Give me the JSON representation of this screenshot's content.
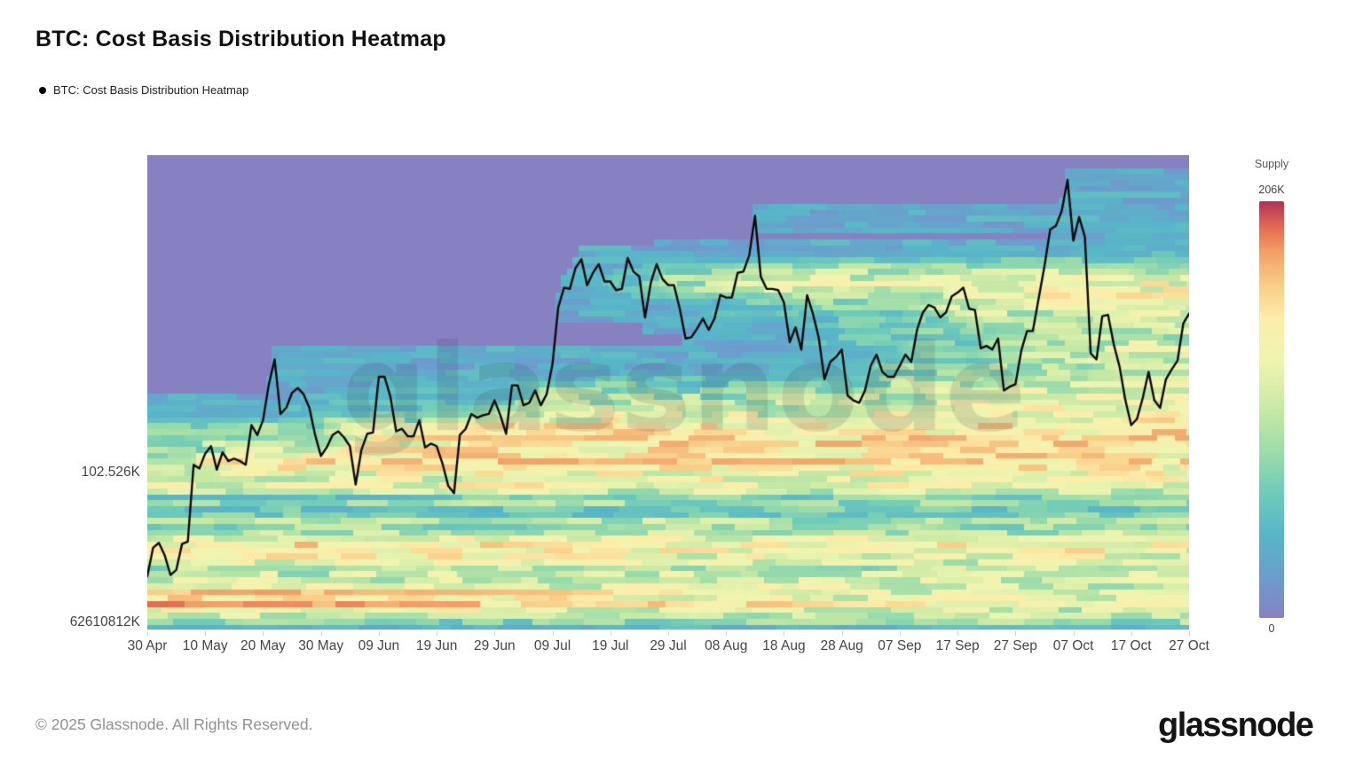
{
  "page": {
    "title": "BTC: Cost Basis Distribution Heatmap"
  },
  "legend": {
    "label": "BTC: Cost Basis Distribution Heatmap"
  },
  "y_axis": {
    "labels": [
      {
        "text": "102.526K"
      },
      {
        "text": "62610812K"
      }
    ]
  },
  "colorbar": {
    "title": "Supply",
    "max_label": "206K",
    "min_label": "0"
  },
  "footer": {
    "copyright": "© 2025 Glassnode. All Rights Reserved.",
    "brand": "glassnode"
  },
  "watermark": "glassnode",
  "chart_data": {
    "type": "heatmap",
    "title": "BTC: Cost Basis Distribution Heatmap",
    "legend_position": "top-left",
    "grid": false,
    "supply_range": {
      "min": 0,
      "max": 206000,
      "max_label": "206K",
      "min_label": "0"
    },
    "price_axis_range_k": [
      89.9,
      128.2
    ],
    "x_ticks": {
      "days": [
        0,
        10,
        20,
        30,
        40,
        50,
        60,
        70,
        80,
        90,
        100,
        110,
        120,
        130,
        140,
        150,
        160,
        170,
        180
      ],
      "labels": [
        "30 Apr",
        "10 May",
        "20 May",
        "30 May",
        "09 Jun",
        "19 Jun",
        "29 Jun",
        "09 Jul",
        "19 Jul",
        "29 Jul",
        "08 Aug",
        "18 Aug",
        "28 Aug",
        "07 Sep",
        "17 Sep",
        "27 Sep",
        "07 Oct",
        "17 Oct",
        "27 Oct"
      ]
    },
    "price_line": {
      "unit": "K USD",
      "start": "30 Apr",
      "step": "1 day",
      "values": [
        94.2,
        96.5,
        96.9,
        95.9,
        94.3,
        94.7,
        96.8,
        97.0,
        103.2,
        102.9,
        104.1,
        104.7,
        102.8,
        104.2,
        103.5,
        103.7,
        103.5,
        103.2,
        106.4,
        105.6,
        106.8,
        109.7,
        111.7,
        107.3,
        107.8,
        109.0,
        109.4,
        108.9,
        107.8,
        105.6,
        103.9,
        104.6,
        105.6,
        105.9,
        105.4,
        104.7,
        101.6,
        104.4,
        105.7,
        105.8,
        110.3,
        110.3,
        108.7,
        105.9,
        106.1,
        105.5,
        105.5,
        106.8,
        104.6,
        104.9,
        104.7,
        103.3,
        101.5,
        100.9,
        105.6,
        106.1,
        107.3,
        107.0,
        107.2,
        107.3,
        108.4,
        107.2,
        105.7,
        109.6,
        109.6,
        108.0,
        108.2,
        109.2,
        108.0,
        108.9,
        111.3,
        115.9,
        117.5,
        117.4,
        119.1,
        119.8,
        117.7,
        118.7,
        119.4,
        118.0,
        118.0,
        117.3,
        117.4,
        119.9,
        118.8,
        118.4,
        115.1,
        117.9,
        119.4,
        118.2,
        117.7,
        117.7,
        115.8,
        113.4,
        113.5,
        114.2,
        115.0,
        114.1,
        115.0,
        116.9,
        116.7,
        116.7,
        118.7,
        118.8,
        120.1,
        123.3,
        118.4,
        117.4,
        117.4,
        117.3,
        116.3,
        113.1,
        114.3,
        112.5,
        116.9,
        115.4,
        113.5,
        110.1,
        111.5,
        111.9,
        112.5,
        108.8,
        108.4,
        108.2,
        109.2,
        111.2,
        112.1,
        110.7,
        110.3,
        110.3,
        111.2,
        112.1,
        111.5,
        114.1,
        115.5,
        116.1,
        115.9,
        115.1,
        115.5,
        116.8,
        117.1,
        117.5,
        115.8,
        115.7,
        112.6,
        112.8,
        112.5,
        113.4,
        109.2,
        109.5,
        109.7,
        112.4,
        114.0,
        114.0,
        116.6,
        119.2,
        122.2,
        122.5,
        123.7,
        126.2,
        121.3,
        123.2,
        121.6,
        112.2,
        111.7,
        115.2,
        115.3,
        112.9,
        111.1,
        108.4,
        106.4,
        106.9,
        108.6,
        110.7,
        108.4,
        107.8,
        110.1,
        110.9,
        111.6,
        114.6,
        115.4
      ]
    },
    "heatmap_model": {
      "rows": 80,
      "pre_chart_high_k": 109,
      "kernel_k": 0.8,
      "daily_gain": 0.026,
      "sat": 0.72,
      "seed": 1337,
      "pre_seed_bands": [
        [
          90.1,
          0.18,
          0.2
        ],
        [
          90.6,
          0.32,
          0.4
        ],
        [
          91.1,
          0.52,
          0.46
        ],
        [
          91.6,
          0.66,
          0.5
        ],
        [
          92.1,
          0.92,
          0.58
        ],
        [
          92.6,
          0.78,
          0.52
        ],
        [
          93.1,
          0.85,
          0.5
        ],
        [
          93.6,
          0.58,
          0.44
        ],
        [
          94.1,
          0.44,
          0.46
        ],
        [
          94.6,
          0.42,
          0.42
        ],
        [
          95.1,
          0.3,
          0.4
        ],
        [
          95.6,
          0.68,
          0.5
        ],
        [
          96.1,
          0.58,
          0.5
        ],
        [
          96.6,
          0.76,
          0.64
        ],
        [
          97.1,
          0.62,
          0.54
        ],
        [
          97.6,
          0.44,
          0.46
        ],
        [
          98.1,
          0.28,
          0.36
        ],
        [
          98.6,
          0.52,
          0.46
        ],
        [
          99.1,
          0.33,
          0.33
        ],
        [
          99.6,
          0.24,
          0.27
        ],
        [
          100.1,
          0.42,
          0.4
        ],
        [
          100.6,
          0.22,
          0.25
        ],
        [
          101.1,
          0.46,
          0.43
        ],
        [
          101.6,
          0.58,
          0.5
        ],
        [
          102.1,
          0.52,
          0.48
        ],
        [
          102.6,
          0.48,
          0.45
        ],
        [
          103.1,
          0.52,
          0.46
        ],
        [
          103.6,
          0.58,
          0.46
        ],
        [
          104.1,
          0.46,
          0.4
        ],
        [
          104.6,
          0.38,
          0.36
        ],
        [
          105.1,
          0.42,
          0.37
        ],
        [
          105.6,
          0.36,
          0.32
        ],
        [
          106.1,
          0.33,
          0.3
        ],
        [
          106.6,
          0.28,
          0.27
        ],
        [
          107.1,
          0.16,
          0.22
        ],
        [
          107.6,
          0.13,
          0.18
        ],
        [
          108.1,
          0.08,
          0.12
        ],
        [
          108.6,
          0.05,
          0.08
        ]
      ],
      "volume_spike_days": {
        "8": 1.8,
        "9": 1.6,
        "10": 1.5,
        "21": 1.3,
        "22": 1.3,
        "71": 1.6,
        "72": 1.5,
        "73": 1.4,
        "74": 1.3,
        "104": 1.3,
        "105": 1.4,
        "154": 1.2,
        "158": 1.3,
        "159": 1.4,
        "163": 1.7,
        "164": 1.5,
        "165": 1.3,
        "169": 1.4,
        "170": 1.4
      }
    },
    "colormap_stops": [
      [
        0.0,
        "#8781c1"
      ],
      [
        0.1,
        "#6b9ecd"
      ],
      [
        0.2,
        "#58b5c8"
      ],
      [
        0.3,
        "#6fcbb9"
      ],
      [
        0.4,
        "#9cdcaa"
      ],
      [
        0.5,
        "#c8e9a5"
      ],
      [
        0.62,
        "#eff5b0"
      ],
      [
        0.72,
        "#fcedaa"
      ],
      [
        0.8,
        "#f9cc86"
      ],
      [
        0.88,
        "#f29e66"
      ],
      [
        0.94,
        "#e26852"
      ],
      [
        1.0,
        "#b03254"
      ]
    ],
    "line_color": "#0a0a0a",
    "background_zero_color": "#8781c1"
  }
}
